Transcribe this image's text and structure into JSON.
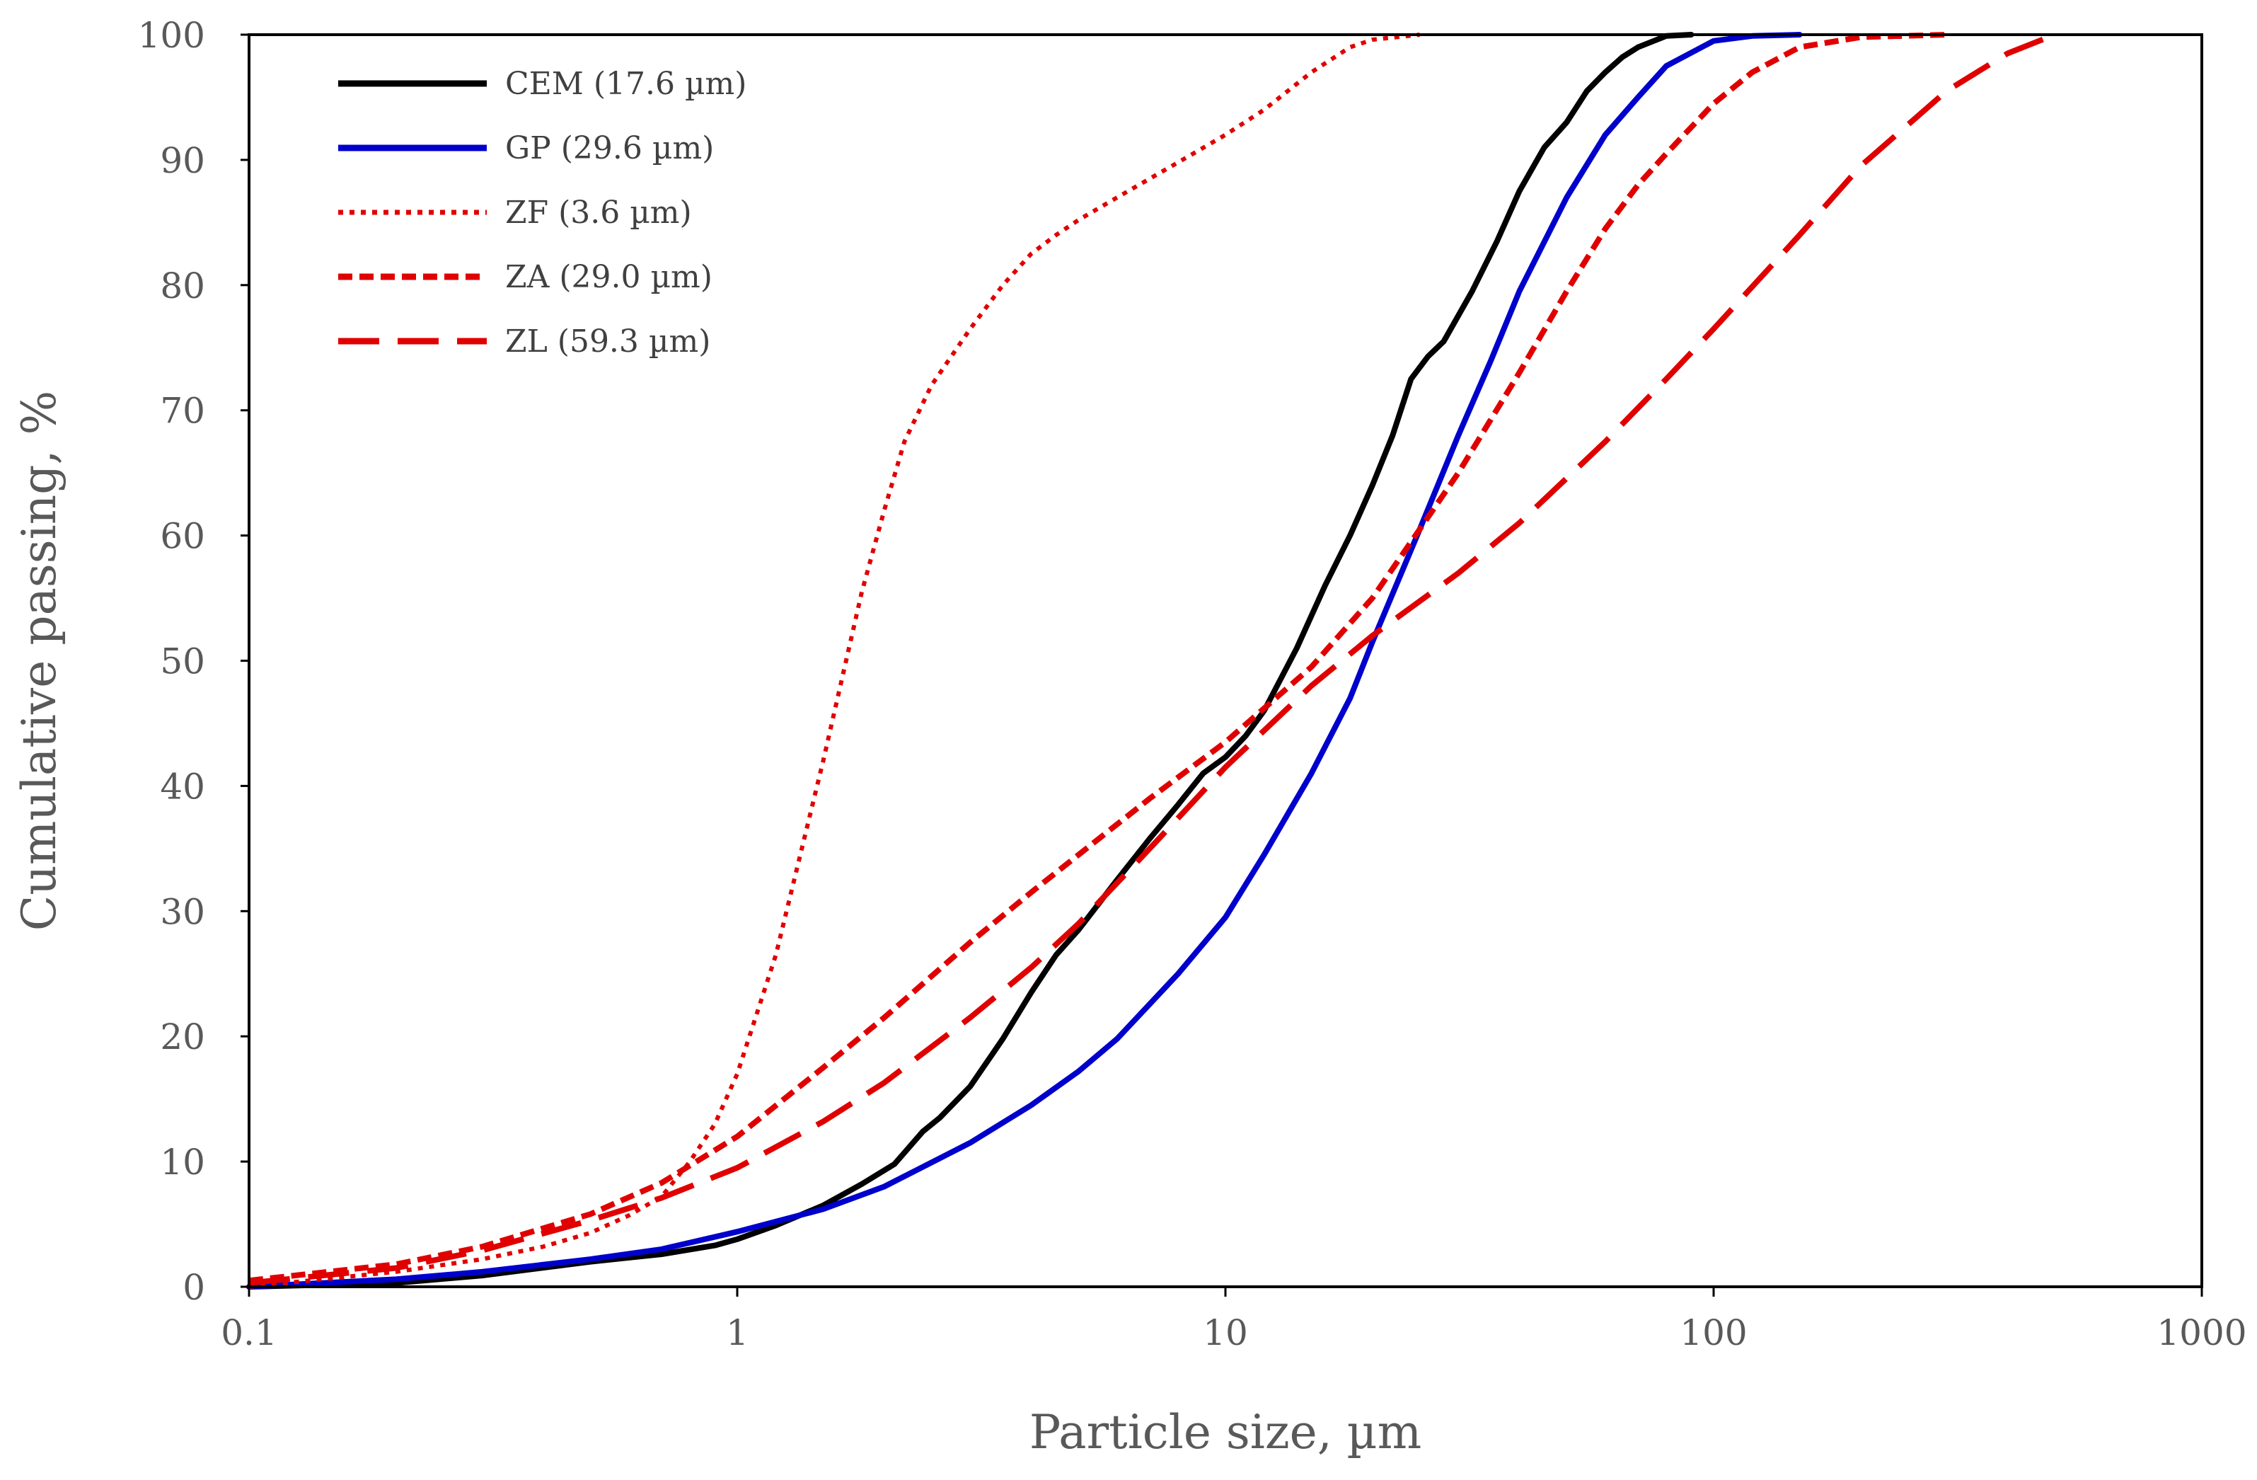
{
  "chart_data": {
    "type": "line",
    "title": "",
    "xlabel": "Particle size, µm",
    "ylabel": "Cumulative passing, %",
    "xscale": "log",
    "xlim": [
      0.1,
      1000
    ],
    "ylim": [
      0,
      100
    ],
    "grid": false,
    "legend_position": "top-left",
    "x_tick_labels": [
      "0.1",
      "1",
      "10",
      "100",
      "1000"
    ],
    "x_ticks": [
      0.1,
      1,
      10,
      100,
      1000
    ],
    "y_tick_labels": [
      "0",
      "10",
      "20",
      "30",
      "40",
      "50",
      "60",
      "70",
      "80",
      "90",
      "100"
    ],
    "y_ticks": [
      0,
      10,
      20,
      30,
      40,
      50,
      60,
      70,
      80,
      90,
      100
    ],
    "series": [
      {
        "name": "CEM (17.6 µm)",
        "color": "#000000",
        "style": "solid",
        "x": [
          0.1,
          0.2,
          0.3,
          0.5,
          0.7,
          0.9,
          1.0,
          1.2,
          1.5,
          1.8,
          2.1,
          2.4,
          2.6,
          3.0,
          3.5,
          4.0,
          4.5,
          5.0,
          6.0,
          7.0,
          8.0,
          9.0,
          10,
          11,
          12,
          14,
          16,
          18,
          20,
          22,
          24,
          26,
          28,
          32,
          36,
          40,
          45,
          50,
          55,
          60,
          65,
          70,
          80,
          90
        ],
        "y": [
          0,
          0.3,
          0.9,
          2.0,
          2.6,
          3.3,
          3.8,
          4.9,
          6.5,
          8.2,
          9.8,
          12.4,
          13.5,
          16.0,
          19.8,
          23.5,
          26.5,
          28.5,
          32.5,
          35.8,
          38.5,
          41.0,
          42.3,
          44.0,
          46.0,
          51.0,
          56.0,
          60.0,
          64.0,
          68.0,
          72.5,
          74.3,
          75.5,
          79.5,
          83.5,
          87.5,
          91.0,
          93.0,
          95.5,
          97.0,
          98.2,
          99.0,
          99.9,
          100
        ]
      },
      {
        "name": "GP (29.6 µm)",
        "color": "#0000CC",
        "style": "solid",
        "x": [
          0.1,
          0.2,
          0.3,
          0.5,
          0.7,
          1.0,
          1.5,
          2.0,
          3.0,
          4.0,
          5.0,
          6.0,
          8.0,
          10,
          12,
          15,
          18,
          20,
          25,
          30,
          35,
          40,
          50,
          60,
          70,
          80,
          100,
          120,
          150
        ],
        "y": [
          0,
          0.6,
          1.2,
          2.2,
          3.0,
          4.4,
          6.2,
          8.0,
          11.5,
          14.5,
          17.2,
          19.8,
          25.0,
          29.5,
          34.5,
          41.0,
          47.0,
          51.5,
          60.5,
          68.0,
          74.0,
          79.5,
          87.0,
          92.0,
          95.0,
          97.5,
          99.5,
          99.9,
          100
        ]
      },
      {
        "name": "ZF (3.6 µm)",
        "color": "#E00000",
        "style": "dotted",
        "x": [
          0.1,
          0.2,
          0.3,
          0.4,
          0.5,
          0.6,
          0.7,
          0.8,
          0.9,
          1.0,
          1.2,
          1.5,
          1.8,
          2.0,
          2.2,
          2.5,
          3.0,
          3.5,
          4.0,
          4.5,
          5.0,
          6.0,
          7.0,
          8.0,
          10,
          12,
          15,
          18,
          20,
          25
        ],
        "y": [
          0,
          1.2,
          2.2,
          3.2,
          4.3,
          5.7,
          7.2,
          10.0,
          13.0,
          17.0,
          26.5,
          42.0,
          55.5,
          62.0,
          67.5,
          72.0,
          76.5,
          80.0,
          82.5,
          84.0,
          85.2,
          87.0,
          88.5,
          89.8,
          92.0,
          94.0,
          97.0,
          99.0,
          99.6,
          100
        ]
      },
      {
        "name": "ZA (29.0 µm)",
        "color": "#E00000",
        "style": "dashed",
        "x": [
          0.1,
          0.2,
          0.3,
          0.5,
          0.7,
          1.0,
          1.5,
          2.0,
          3.0,
          4.0,
          5.0,
          7.0,
          10,
          15,
          20,
          25,
          30,
          40,
          50,
          60,
          70,
          80,
          100,
          120,
          150,
          200,
          300
        ],
        "y": [
          0.5,
          1.8,
          3.2,
          5.8,
          8.3,
          12.0,
          17.5,
          21.5,
          27.5,
          31.5,
          34.5,
          39.0,
          43.5,
          49.5,
          55.0,
          60.5,
          65.0,
          73.0,
          79.5,
          84.5,
          88.0,
          90.5,
          94.5,
          97.0,
          99.0,
          99.8,
          100
        ]
      },
      {
        "name": "ZL (59.3 µm)",
        "color": "#E00000",
        "style": "longdash",
        "x": [
          0.1,
          0.2,
          0.3,
          0.5,
          0.7,
          1.0,
          1.5,
          2.0,
          3.0,
          4.0,
          5.0,
          7.0,
          10,
          15,
          20,
          30,
          40,
          60,
          80,
          100,
          150,
          200,
          300,
          400,
          500
        ],
        "y": [
          0.3,
          1.5,
          2.9,
          5.3,
          7.1,
          9.5,
          13.2,
          16.3,
          21.5,
          25.5,
          29.0,
          35.0,
          41.5,
          48.0,
          52.0,
          57.0,
          61.0,
          67.5,
          72.5,
          76.5,
          84.0,
          89.5,
          95.5,
          98.5,
          100
        ]
      }
    ]
  }
}
